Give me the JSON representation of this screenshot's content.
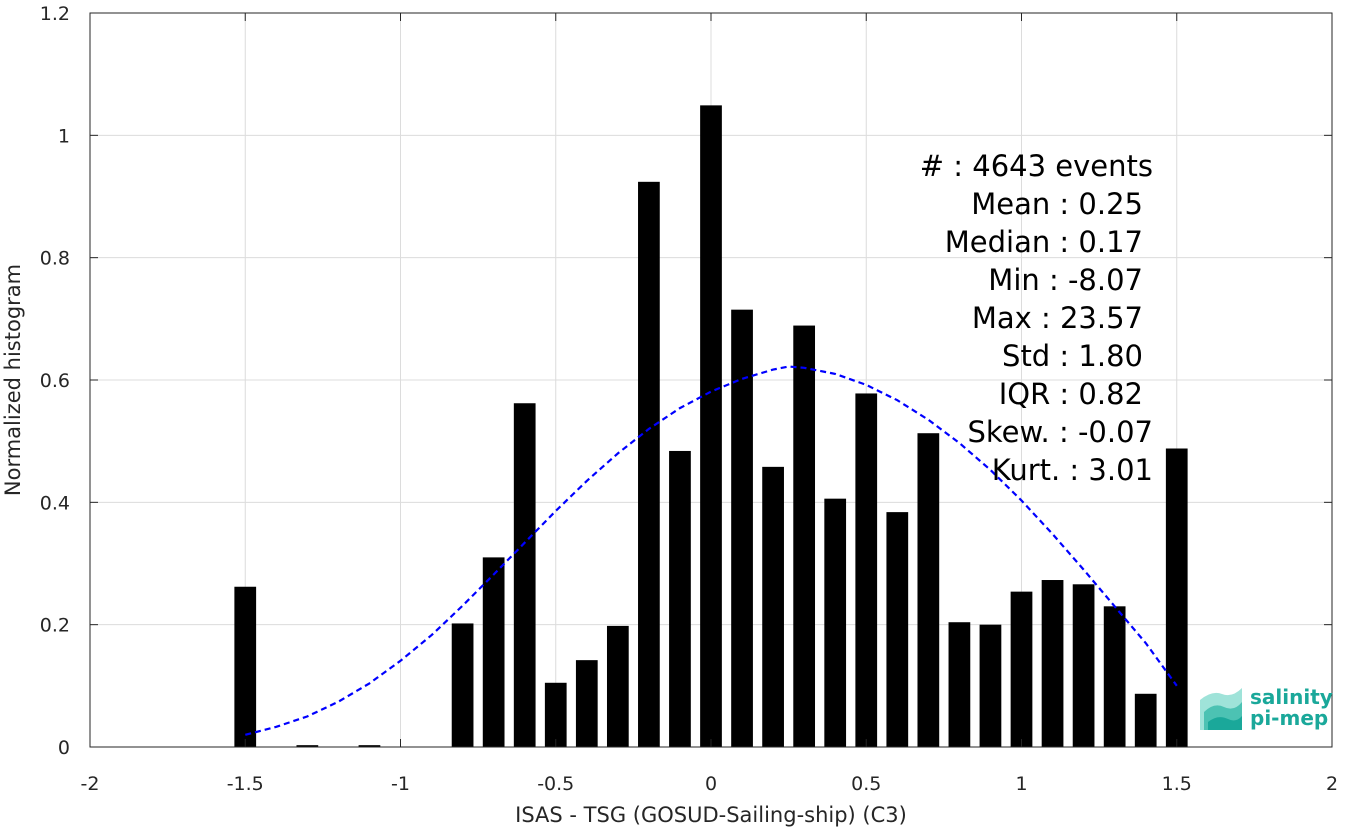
{
  "chart_data": {
    "type": "bar",
    "xlabel": "ISAS - TSG (GOSUD-Sailing-ship) (C3)",
    "ylabel": "Normalized histogram",
    "xlim": [
      -2,
      2
    ],
    "ylim": [
      0,
      1.2
    ],
    "xticks": [
      -2,
      -1.5,
      -1,
      -0.5,
      0,
      0.5,
      1,
      1.5,
      2
    ],
    "xtick_labels": [
      "-2",
      "-1.5",
      "-1",
      "-0.5",
      "0",
      "0.5",
      "1",
      "1.5",
      "2"
    ],
    "yticks": [
      0,
      0.2,
      0.4,
      0.6,
      0.8,
      1,
      1.2
    ],
    "ytick_labels": [
      "0",
      "0.2",
      "0.4",
      "0.6",
      "0.8",
      "1",
      "1.2"
    ],
    "grid": true,
    "bar_width": 0.07,
    "x": [
      -1.5,
      -1.4,
      -1.3,
      -1.2,
      -1.1,
      -1.0,
      -0.9,
      -0.8,
      -0.7,
      -0.6,
      -0.5,
      -0.4,
      -0.3,
      -0.2,
      -0.1,
      0.0,
      0.1,
      0.2,
      0.3,
      0.4,
      0.5,
      0.6,
      0.7,
      0.8,
      0.9,
      1.0,
      1.1,
      1.2,
      1.3,
      1.4,
      1.5
    ],
    "values": [
      0.262,
      0.0,
      0.003,
      0.0,
      0.003,
      0.0,
      0.0,
      0.202,
      0.31,
      0.562,
      0.105,
      0.142,
      0.198,
      0.924,
      0.484,
      1.049,
      0.715,
      0.458,
      0.689,
      0.406,
      0.578,
      0.384,
      0.513,
      0.204,
      0.2,
      0.254,
      0.273,
      0.266,
      0.23,
      0.087,
      0.488
    ],
    "bar_color": "#000000",
    "fit_curve": {
      "style": "dashed",
      "color": "#0000ff",
      "x": [
        -1.5,
        -1.4,
        -1.3,
        -1.2,
        -1.1,
        -1.0,
        -0.9,
        -0.8,
        -0.7,
        -0.6,
        -0.5,
        -0.4,
        -0.3,
        -0.2,
        -0.1,
        0.0,
        0.1,
        0.2,
        0.25,
        0.3,
        0.4,
        0.5,
        0.6,
        0.7,
        0.8,
        0.9,
        1.0,
        1.1,
        1.2,
        1.3,
        1.4,
        1.5
      ],
      "y": [
        0.02,
        0.033,
        0.05,
        0.074,
        0.104,
        0.141,
        0.183,
        0.231,
        0.282,
        0.334,
        0.386,
        0.435,
        0.48,
        0.52,
        0.554,
        0.581,
        0.602,
        0.617,
        0.622,
        0.62,
        0.61,
        0.592,
        0.567,
        0.535,
        0.497,
        0.453,
        0.403,
        0.348,
        0.29,
        0.23,
        0.17,
        0.1
      ]
    },
    "stats": [
      {
        "label": "#  : 4643 events"
      },
      {
        "label": "Mean : 0.25"
      },
      {
        "label": "Median : 0.17"
      },
      {
        "label": "Min : -8.07"
      },
      {
        "label": "Max : 23.57"
      },
      {
        "label": "Std : 1.80"
      },
      {
        "label": "IQR : 0.82"
      },
      {
        "label": "Skew. : -0.07"
      },
      {
        "label": "Kurt. : 3.01"
      }
    ]
  },
  "logo": {
    "line1": "salinity",
    "line2": "pi-mep",
    "color": "#1aa89a"
  }
}
